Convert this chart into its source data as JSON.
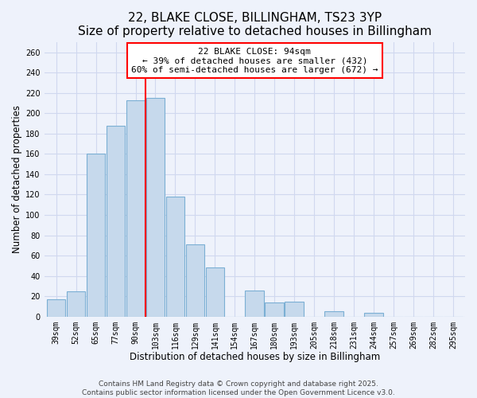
{
  "title": "22, BLAKE CLOSE, BILLINGHAM, TS23 3YP",
  "subtitle": "Size of property relative to detached houses in Billingham",
  "xlabel": "Distribution of detached houses by size in Billingham",
  "ylabel": "Number of detached properties",
  "categories": [
    "39sqm",
    "52sqm",
    "65sqm",
    "77sqm",
    "90sqm",
    "103sqm",
    "116sqm",
    "129sqm",
    "141sqm",
    "154sqm",
    "167sqm",
    "180sqm",
    "193sqm",
    "205sqm",
    "218sqm",
    "231sqm",
    "244sqm",
    "257sqm",
    "269sqm",
    "282sqm",
    "295sqm"
  ],
  "values": [
    17,
    25,
    160,
    188,
    213,
    215,
    118,
    71,
    48,
    0,
    26,
    14,
    15,
    0,
    5,
    0,
    4,
    0,
    0,
    0,
    0
  ],
  "bar_color": "#c6d9ec",
  "bar_edge_color": "#7bafd4",
  "vline_x": 4.5,
  "vline_color": "red",
  "annotation_title": "22 BLAKE CLOSE: 94sqm",
  "annotation_line1": "← 39% of detached houses are smaller (432)",
  "annotation_line2": "60% of semi-detached houses are larger (672) →",
  "annotation_box_color": "white",
  "annotation_box_edge": "red",
  "footer_line1": "Contains HM Land Registry data © Crown copyright and database right 2025.",
  "footer_line2": "Contains public sector information licensed under the Open Government Licence v3.0.",
  "ylim": [
    0,
    270
  ],
  "yticks": [
    0,
    20,
    40,
    60,
    80,
    100,
    120,
    140,
    160,
    180,
    200,
    220,
    240,
    260
  ],
  "background_color": "#eef2fb",
  "grid_color": "#d0d8ef",
  "title_fontsize": 11,
  "subtitle_fontsize": 9.5,
  "xlabel_fontsize": 8.5,
  "ylabel_fontsize": 8.5,
  "tick_fontsize": 7,
  "annotation_fontsize": 8,
  "footer_fontsize": 6.5
}
